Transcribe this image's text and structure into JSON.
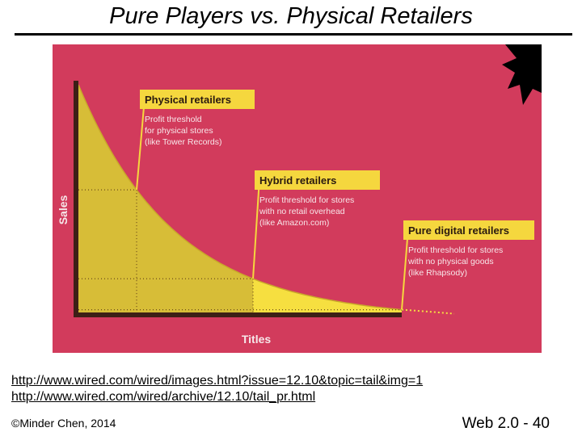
{
  "slide": {
    "title": "Pure Players vs. Physical Retailers",
    "link1": "http://www.wired.com/wired/images.html?issue=12.10&topic=tail&img=1",
    "link2": "http://www.wired.com/wired/archive/12.10/tail_pr.html",
    "copyright": "©Minder Chen, 2014",
    "page": "Web 2.0 - 40"
  },
  "colors": {
    "background": "#d23b5c",
    "curve_fill_dark": "#d7bd37",
    "curve_fill_light": "#f6df40",
    "label_box": "#f5d73e",
    "axis": "#3d1f16"
  },
  "chart_data": {
    "type": "area",
    "shape": "long-tail decay curve",
    "xlabel": "Titles",
    "ylabel": "Sales",
    "grid": false,
    "thresholds": [
      {
        "name": "Physical retailers",
        "lines": [
          "Profit threshold",
          "for physical stores",
          "(like Tower Records)"
        ],
        "position": 0.18
      },
      {
        "name": "Hybrid retailers",
        "lines": [
          "Profit threshold for stores",
          "with no retail overhead",
          "(like Amazon.com)"
        ],
        "position": 0.54
      },
      {
        "name": "Pure digital retailers",
        "lines": [
          "Profit threshold for stores",
          "with no physical goods",
          "(like Rhapsody)"
        ],
        "position": 1.0
      }
    ]
  }
}
